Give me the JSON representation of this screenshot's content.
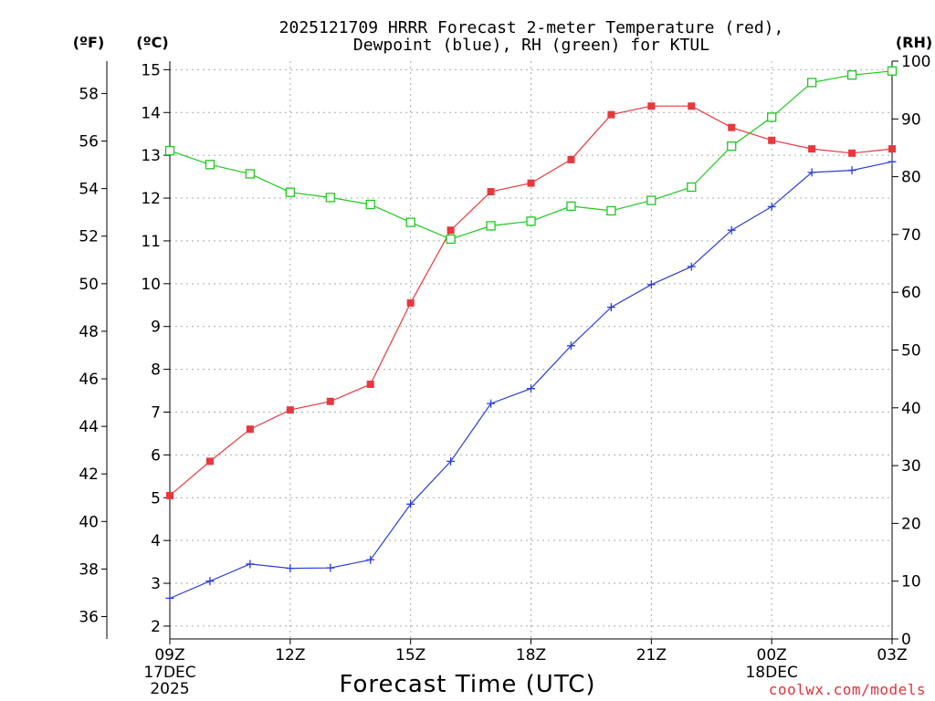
{
  "chart_data": {
    "type": "line",
    "title": [
      "2025121709 HRRR Forecast 2-meter Temperature (red),",
      "Dewpoint (blue), RH (green) for KTUL"
    ],
    "xlabel": "Forecast Time (UTC)",
    "credit": "coolwx.com/models",
    "y_left_outer_label": "(ºF)",
    "y_left_inner_label": "(ºC)",
    "y_right_label": "(RH)",
    "x_ticks": [
      {
        "hour": 0,
        "label": "09Z",
        "sub": [
          "17DEC",
          "2025"
        ]
      },
      {
        "hour": 3,
        "label": "12Z",
        "sub": []
      },
      {
        "hour": 6,
        "label": "15Z",
        "sub": []
      },
      {
        "hour": 9,
        "label": "18Z",
        "sub": []
      },
      {
        "hour": 12,
        "label": "21Z",
        "sub": []
      },
      {
        "hour": 15,
        "label": "00Z",
        "sub": [
          "18DEC"
        ]
      },
      {
        "hour": 18,
        "label": "03Z",
        "sub": []
      }
    ],
    "xlim": [
      0,
      18
    ],
    "ylim_c": [
      1.7,
      15.2
    ],
    "ylim_rh": [
      0,
      100
    ],
    "y_c_ticks": [
      2,
      3,
      4,
      5,
      6,
      7,
      8,
      9,
      10,
      11,
      12,
      13,
      14,
      15
    ],
    "y_f_ticks": [
      36,
      38,
      40,
      42,
      44,
      46,
      48,
      50,
      52,
      54,
      56,
      58
    ],
    "y_rh_ticks": [
      0,
      10,
      20,
      30,
      40,
      50,
      60,
      70,
      80,
      90,
      100
    ],
    "grid": true,
    "series": [
      {
        "name": "Temperature",
        "units": "C",
        "color": "#e8383d",
        "marker": "filled-square",
        "x": [
          0,
          1,
          2,
          3,
          4,
          5,
          6,
          7,
          8,
          9,
          10,
          11,
          12,
          13,
          14,
          15,
          16,
          17,
          18
        ],
        "values": [
          5.05,
          5.85,
          6.6,
          7.05,
          7.25,
          7.65,
          9.55,
          11.25,
          12.15,
          12.35,
          12.9,
          13.95,
          14.15,
          14.15,
          13.65,
          13.35,
          13.15,
          13.05,
          13.15
        ]
      },
      {
        "name": "Dewpoint",
        "units": "C",
        "color": "#2b3fd8",
        "marker": "plus",
        "x": [
          0,
          1,
          2,
          3,
          4,
          5,
          6,
          7,
          8,
          9,
          10,
          11,
          12,
          13,
          14,
          15,
          16,
          17,
          18
        ],
        "values": [
          2.65,
          3.05,
          3.45,
          3.35,
          3.36,
          3.55,
          4.85,
          5.85,
          7.2,
          7.55,
          8.55,
          9.45,
          9.98,
          10.4,
          11.25,
          11.8,
          12.6,
          12.65,
          12.85
        ]
      },
      {
        "name": "RH",
        "units": "%",
        "color": "#1ec81e",
        "marker": "open-square",
        "x": [
          0,
          1,
          2,
          3,
          4,
          5,
          6,
          7,
          8,
          9,
          10,
          11,
          12,
          13,
          14,
          15,
          16,
          17,
          18
        ],
        "values": [
          84.5,
          82.1,
          80.5,
          77.3,
          76.4,
          75.2,
          72.1,
          69.2,
          71.5,
          72.3,
          74.9,
          74.1,
          75.9,
          78.2,
          85.3,
          90.3,
          96.3,
          97.6,
          98.3
        ]
      }
    ]
  }
}
